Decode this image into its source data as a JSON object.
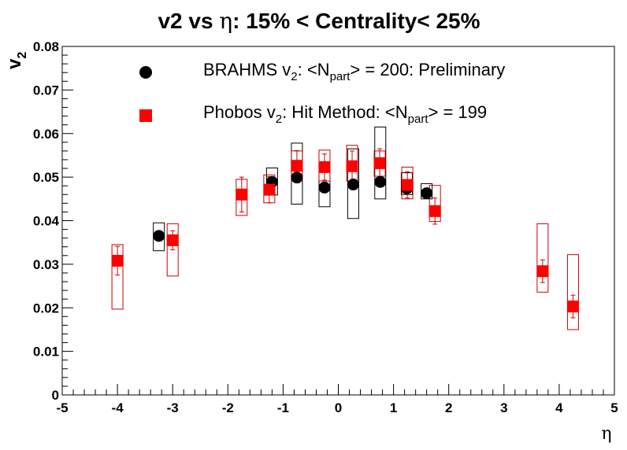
{
  "chart_data": {
    "type": "scatter",
    "title": {
      "prefix": "v2 vs ",
      "symbol": "η",
      "suffix": ": 15% < Centrality< 25%"
    },
    "xlabel": "η",
    "ylabel": {
      "main": "v",
      "sub": "2"
    },
    "xlim": [
      -5,
      5
    ],
    "ylim": [
      0,
      0.08
    ],
    "xticks": [
      "-5",
      "-4",
      "-3",
      "-2",
      "-1",
      "0",
      "1",
      "2",
      "3",
      "4",
      "5"
    ],
    "yticks": [
      "0",
      "0.01",
      "0.02",
      "0.03",
      "0.04",
      "0.05",
      "0.06",
      "0.07",
      "0.08"
    ],
    "grid": false,
    "legend_position": "top",
    "series": [
      {
        "key": "brahms",
        "marker": "circle",
        "color": "#000000",
        "box_color": "#000000",
        "legend": {
          "pre": "BRAHMS v",
          "sub1": "2",
          "mid": ": <N",
          "sub2": "part",
          "post": "> = 200: Preliminary"
        },
        "points": [
          {
            "x": -3.25,
            "y": 0.0365,
            "err": 0.0,
            "sys_low": 0.0331,
            "sys_high": 0.0395
          },
          {
            "x": -1.2,
            "y": 0.0489,
            "err": 0.0,
            "sys_low": 0.0459,
            "sys_high": 0.0521
          },
          {
            "x": -0.75,
            "y": 0.0499,
            "err": 0.0,
            "sys_low": 0.0438,
            "sys_high": 0.0578
          },
          {
            "x": -0.25,
            "y": 0.0476,
            "err": 0.0,
            "sys_low": 0.0432,
            "sys_high": 0.0531
          },
          {
            "x": 0.27,
            "y": 0.0483,
            "err": 0.0,
            "sys_low": 0.0405,
            "sys_high": 0.0565
          },
          {
            "x": 0.76,
            "y": 0.0489,
            "err": 0.0,
            "sys_low": 0.045,
            "sys_high": 0.0615
          },
          {
            "x": 1.24,
            "y": 0.0474,
            "err": 0.0,
            "sys_low": 0.046,
            "sys_high": 0.051
          },
          {
            "x": 1.6,
            "y": 0.0463,
            "err": 0.0,
            "sys_low": 0.045,
            "sys_high": 0.0485
          }
        ]
      },
      {
        "key": "phobos",
        "marker": "square",
        "color": "#ff0000",
        "box_color": "#cc0000",
        "legend": {
          "pre": "Phobos v",
          "sub1": "2",
          "mid": ": Hit Method: <N",
          "sub2": "part",
          "post": "> = 199"
        },
        "points": [
          {
            "x": -4.0,
            "y": 0.0308,
            "err": 0.0033,
            "sys_low": 0.0197,
            "sys_high": 0.0345
          },
          {
            "x": -3.0,
            "y": 0.0355,
            "err": 0.0022,
            "sys_low": 0.0273,
            "sys_high": 0.0393
          },
          {
            "x": -1.75,
            "y": 0.046,
            "err": 0.004,
            "sys_low": 0.0412,
            "sys_high": 0.0495
          },
          {
            "x": -1.25,
            "y": 0.0471,
            "err": 0.003,
            "sys_low": 0.0441,
            "sys_high": 0.0505
          },
          {
            "x": -0.75,
            "y": 0.0526,
            "err": 0.0035,
            "sys_low": 0.0491,
            "sys_high": 0.056
          },
          {
            "x": -0.25,
            "y": 0.0523,
            "err": 0.003,
            "sys_low": 0.0491,
            "sys_high": 0.0562
          },
          {
            "x": 0.25,
            "y": 0.0525,
            "err": 0.0035,
            "sys_low": 0.0491,
            "sys_high": 0.0573
          },
          {
            "x": 0.75,
            "y": 0.0532,
            "err": 0.0033,
            "sys_low": 0.0502,
            "sys_high": 0.056
          },
          {
            "x": 1.25,
            "y": 0.0482,
            "err": 0.003,
            "sys_low": 0.045,
            "sys_high": 0.0523
          },
          {
            "x": 1.75,
            "y": 0.0422,
            "err": 0.003,
            "sys_low": 0.0398,
            "sys_high": 0.0481
          },
          {
            "x": 3.7,
            "y": 0.0284,
            "err": 0.0026,
            "sys_low": 0.0236,
            "sys_high": 0.0393
          },
          {
            "x": 4.25,
            "y": 0.0203,
            "err": 0.0026,
            "sys_low": 0.015,
            "sys_high": 0.0322
          }
        ]
      }
    ]
  }
}
